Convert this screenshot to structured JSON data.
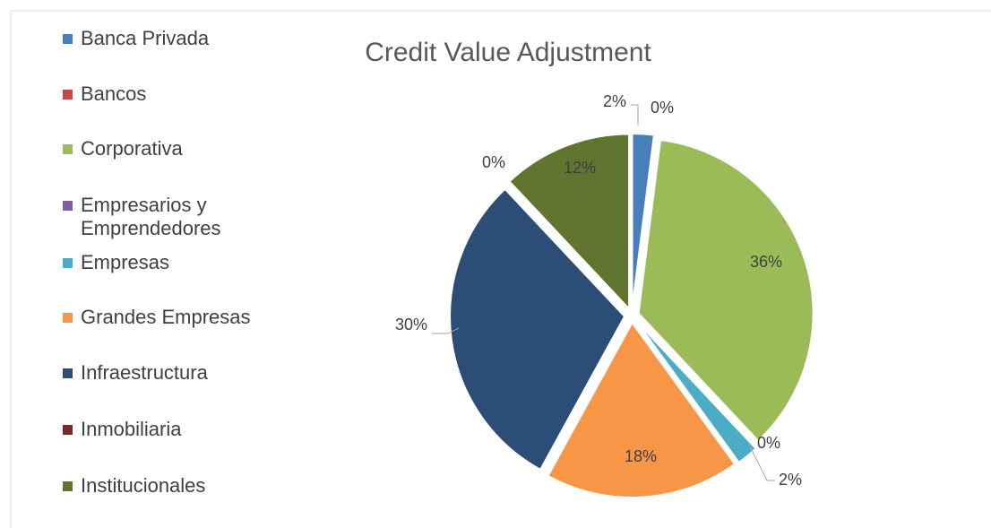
{
  "chart_data": {
    "type": "pie",
    "title": "Credit Value Adjustment",
    "categories": [
      "Banca Privada",
      "Bancos",
      "Corporativa",
      "Empresarios y Emprendedores",
      "Empresas",
      "Grandes Empresas",
      "Infraestructura",
      "Inmobiliaria",
      "Institucionales"
    ],
    "values": [
      2,
      0,
      36,
      0,
      2,
      18,
      30,
      0,
      12
    ],
    "value_labels": [
      "2%",
      "0%",
      "36%",
      "0%",
      "2%",
      "18%",
      "30%",
      "0%",
      "12%"
    ],
    "colors": [
      "#4a7ebb",
      "#be4b48",
      "#9bbb59",
      "#7d5fa0",
      "#4bacc6",
      "#f79646",
      "#2c4d75",
      "#772c2a",
      "#5f7530"
    ],
    "legend": "left"
  }
}
